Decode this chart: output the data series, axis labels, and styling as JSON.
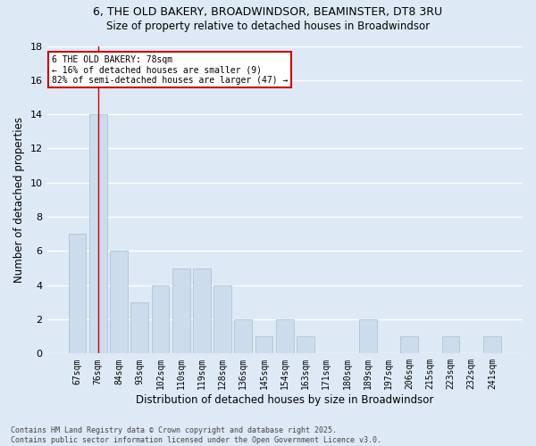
{
  "title1": "6, THE OLD BAKERY, BROADWINDSOR, BEAMINSTER, DT8 3RU",
  "title2": "Size of property relative to detached houses in Broadwindsor",
  "xlabel": "Distribution of detached houses by size in Broadwindsor",
  "ylabel": "Number of detached properties",
  "categories": [
    "67sqm",
    "76sqm",
    "84sqm",
    "93sqm",
    "102sqm",
    "110sqm",
    "119sqm",
    "128sqm",
    "136sqm",
    "145sqm",
    "154sqm",
    "163sqm",
    "171sqm",
    "180sqm",
    "189sqm",
    "197sqm",
    "206sqm",
    "215sqm",
    "223sqm",
    "232sqm",
    "241sqm"
  ],
  "values": [
    7,
    14,
    6,
    3,
    4,
    5,
    5,
    4,
    2,
    1,
    2,
    1,
    0,
    0,
    2,
    0,
    1,
    0,
    1,
    0,
    1
  ],
  "bar_color": "#ccdcec",
  "bar_edgecolor": "#aabccc",
  "bg_color": "#ddeaf5",
  "grid_color": "#ffffff",
  "redline_x": 1.0,
  "annotation_text": "6 THE OLD BAKERY: 78sqm\n← 16% of detached houses are smaller (9)\n82% of semi-detached houses are larger (47) →",
  "annotation_box_color": "#ffffff",
  "annotation_border_color": "#cc0000",
  "footer_text": "Contains HM Land Registry data © Crown copyright and database right 2025.\nContains public sector information licensed under the Open Government Licence v3.0.",
  "ylim": [
    0,
    18
  ],
  "yticks": [
    0,
    2,
    4,
    6,
    8,
    10,
    12,
    14,
    16,
    18
  ]
}
